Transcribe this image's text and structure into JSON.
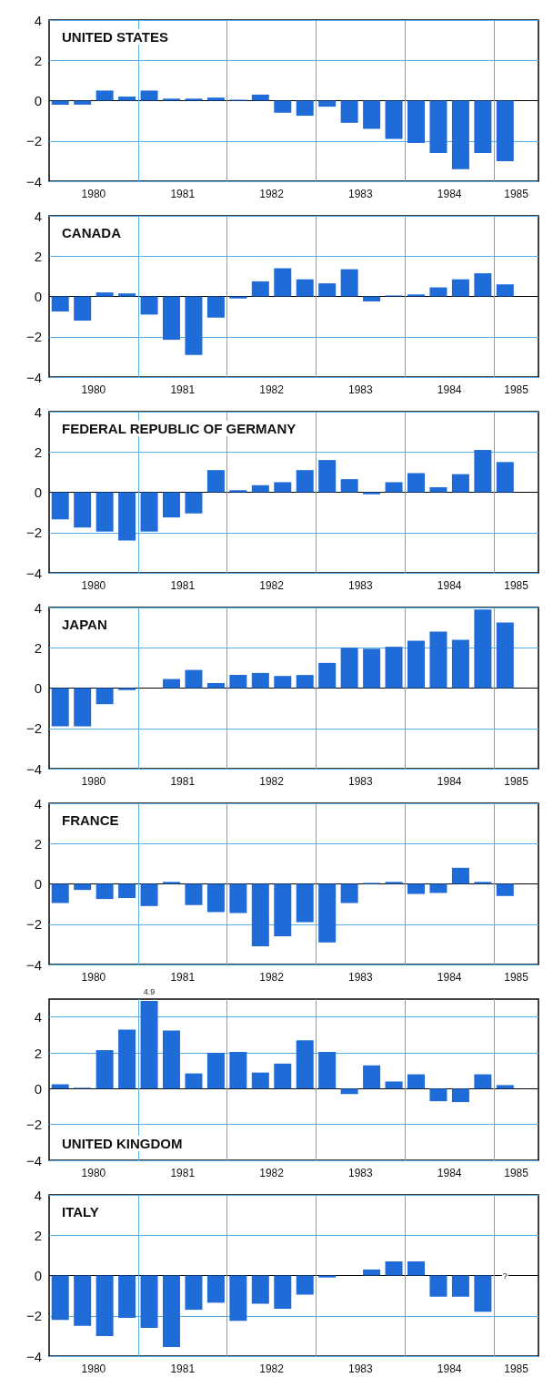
{
  "chart_data": [
    {
      "type": "bar",
      "title": "UNITED STATES",
      "color": "#1f6bd8",
      "grid": true,
      "xlim": [
        1980,
        1985.5
      ],
      "ylim": [
        -4,
        4
      ],
      "yticks": [
        -4,
        -2,
        0,
        2,
        4
      ],
      "xticks": [
        {
          "value": 1981,
          "label": null
        },
        {
          "value": 1982,
          "label": null
        },
        {
          "value": 1983,
          "label": null
        },
        {
          "value": 1984,
          "label": null
        },
        {
          "value": 1985,
          "label": null
        },
        {
          "value": 1980.5,
          "label": "1980"
        },
        {
          "value": 1981.5,
          "label": "1981"
        },
        {
          "value": 1982.5,
          "label": "1982"
        },
        {
          "value": 1983.5,
          "label": "1983"
        },
        {
          "value": 1984.5,
          "label": "1984"
        },
        {
          "value": 1985.25,
          "label": "1985"
        }
      ],
      "x": [
        1980.125,
        1980.375,
        1980.625,
        1980.875,
        1981.125,
        1981.375,
        1981.625,
        1981.875,
        1982.125,
        1982.375,
        1982.625,
        1982.875,
        1983.125,
        1983.375,
        1983.625,
        1983.875,
        1984.125,
        1984.375,
        1984.625,
        1984.875,
        1985.125
      ],
      "values": [
        -0.2,
        -0.2,
        0.5,
        0.2,
        0.5,
        0.1,
        0.1,
        0.15,
        0.05,
        0.3,
        -0.6,
        -0.75,
        -0.3,
        -1.1,
        -1.4,
        -1.9,
        -2.1,
        -2.6,
        -3.4,
        -2.6,
        -3.0
      ]
    },
    {
      "type": "bar",
      "title": "CANADA",
      "color": "#1f6bd8",
      "grid": true,
      "xlim": [
        1980,
        1985.5
      ],
      "ylim": [
        -4,
        4
      ],
      "yticks": [
        -4,
        -2,
        0,
        2,
        4
      ],
      "xticks": [
        {
          "value": 1981,
          "label": null
        },
        {
          "value": 1982,
          "label": null
        },
        {
          "value": 1983,
          "label": null
        },
        {
          "value": 1984,
          "label": null
        },
        {
          "value": 1985,
          "label": null
        },
        {
          "value": 1980.5,
          "label": "1980"
        },
        {
          "value": 1981.5,
          "label": "1981"
        },
        {
          "value": 1982.5,
          "label": "1982"
        },
        {
          "value": 1983.5,
          "label": "1983"
        },
        {
          "value": 1984.5,
          "label": "1984"
        },
        {
          "value": 1985.25,
          "label": "1985"
        }
      ],
      "x": [
        1980.125,
        1980.375,
        1980.625,
        1980.875,
        1981.125,
        1981.375,
        1981.625,
        1981.875,
        1982.125,
        1982.375,
        1982.625,
        1982.875,
        1983.125,
        1983.375,
        1983.625,
        1983.875,
        1984.125,
        1984.375,
        1984.625,
        1984.875,
        1985.125
      ],
      "values": [
        -0.75,
        -1.2,
        0.2,
        0.15,
        -0.9,
        -2.15,
        -2.9,
        -1.05,
        -0.1,
        0.75,
        1.4,
        0.85,
        0.65,
        1.35,
        -0.25,
        0.05,
        0.1,
        0.45,
        0.85,
        1.15,
        0.6
      ]
    },
    {
      "type": "bar",
      "title": "FEDERAL REPUBLIC OF GERMANY",
      "color": "#1f6bd8",
      "grid": true,
      "xlim": [
        1980,
        1985.5
      ],
      "ylim": [
        -4,
        4
      ],
      "yticks": [
        -4,
        -2,
        0,
        2,
        4
      ],
      "xticks": [
        {
          "value": 1981,
          "label": null
        },
        {
          "value": 1982,
          "label": null
        },
        {
          "value": 1983,
          "label": null
        },
        {
          "value": 1984,
          "label": null
        },
        {
          "value": 1985,
          "label": null
        },
        {
          "value": 1980.5,
          "label": "1980"
        },
        {
          "value": 1981.5,
          "label": "1981"
        },
        {
          "value": 1982.5,
          "label": "1982"
        },
        {
          "value": 1983.5,
          "label": "1983"
        },
        {
          "value": 1984.5,
          "label": "1984"
        },
        {
          "value": 1985.25,
          "label": "1985"
        }
      ],
      "x": [
        1980.125,
        1980.375,
        1980.625,
        1980.875,
        1981.125,
        1981.375,
        1981.625,
        1981.875,
        1982.125,
        1982.375,
        1982.625,
        1982.875,
        1983.125,
        1983.375,
        1983.625,
        1983.875,
        1984.125,
        1984.375,
        1984.625,
        1984.875,
        1985.125
      ],
      "values": [
        -1.35,
        -1.75,
        -1.95,
        -2.4,
        -1.95,
        -1.25,
        -1.05,
        1.1,
        0.1,
        0.35,
        0.5,
        1.1,
        1.6,
        0.65,
        -0.1,
        0.5,
        0.95,
        0.25,
        0.9,
        2.1,
        1.5
      ]
    },
    {
      "type": "bar",
      "title": "JAPAN",
      "color": "#1f6bd8",
      "grid": true,
      "xlim": [
        1980,
        1985.5
      ],
      "ylim": [
        -4,
        4
      ],
      "yticks": [
        -4,
        -2,
        0,
        2,
        4
      ],
      "xticks": [
        {
          "value": 1981,
          "label": null
        },
        {
          "value": 1982,
          "label": null
        },
        {
          "value": 1983,
          "label": null
        },
        {
          "value": 1984,
          "label": null
        },
        {
          "value": 1985,
          "label": null
        },
        {
          "value": 1980.5,
          "label": "1980"
        },
        {
          "value": 1981.5,
          "label": "1981"
        },
        {
          "value": 1982.5,
          "label": "1982"
        },
        {
          "value": 1983.5,
          "label": "1983"
        },
        {
          "value": 1984.5,
          "label": "1984"
        },
        {
          "value": 1985.25,
          "label": "1985"
        }
      ],
      "x": [
        1980.125,
        1980.375,
        1980.625,
        1980.875,
        1981.125,
        1981.375,
        1981.625,
        1981.875,
        1982.125,
        1982.375,
        1982.625,
        1982.875,
        1983.125,
        1983.375,
        1983.625,
        1983.875,
        1984.125,
        1984.375,
        1984.625,
        1984.875,
        1985.125
      ],
      "values": [
        -1.9,
        -1.9,
        -0.8,
        -0.1,
        0,
        0.45,
        0.9,
        0.25,
        0.65,
        0.75,
        0.6,
        0.65,
        1.25,
        2.0,
        1.95,
        2.05,
        2.35,
        2.8,
        2.4,
        3.9,
        3.25
      ]
    },
    {
      "type": "bar",
      "title": "FRANCE",
      "color": "#1f6bd8",
      "grid": true,
      "xlim": [
        1980,
        1985.5
      ],
      "ylim": [
        -4,
        4
      ],
      "yticks": [
        -4,
        -2,
        0,
        2,
        4
      ],
      "xticks": [
        {
          "value": 1981,
          "label": null
        },
        {
          "value": 1982,
          "label": null
        },
        {
          "value": 1983,
          "label": null
        },
        {
          "value": 1984,
          "label": null
        },
        {
          "value": 1985,
          "label": null
        },
        {
          "value": 1980.5,
          "label": "1980"
        },
        {
          "value": 1981.5,
          "label": "1981"
        },
        {
          "value": 1982.5,
          "label": "1982"
        },
        {
          "value": 1983.5,
          "label": "1983"
        },
        {
          "value": 1984.5,
          "label": "1984"
        },
        {
          "value": 1985.25,
          "label": "1985"
        }
      ],
      "x": [
        1980.125,
        1980.375,
        1980.625,
        1980.875,
        1981.125,
        1981.375,
        1981.625,
        1981.875,
        1982.125,
        1982.375,
        1982.625,
        1982.875,
        1983.125,
        1983.375,
        1983.625,
        1983.875,
        1984.125,
        1984.375,
        1984.625,
        1984.875,
        1985.125
      ],
      "values": [
        -0.95,
        -0.3,
        -0.75,
        -0.7,
        -1.1,
        0.1,
        -1.05,
        -1.4,
        -1.45,
        -3.1,
        -2.6,
        -1.9,
        -2.9,
        -0.95,
        0.05,
        0.1,
        -0.5,
        -0.45,
        0.8,
        0.1,
        -0.6
      ]
    },
    {
      "type": "bar",
      "title": "UNITED KINGDOM",
      "color": "#1f6bd8",
      "grid": true,
      "xlim": [
        1980,
        1985.5
      ],
      "ylim": [
        -4,
        5
      ],
      "yticks": [
        -4,
        -2,
        0,
        2,
        4
      ],
      "xticks": [
        {
          "value": 1981,
          "label": null
        },
        {
          "value": 1982,
          "label": null
        },
        {
          "value": 1983,
          "label": null
        },
        {
          "value": 1984,
          "label": null
        },
        {
          "value": 1985,
          "label": null
        },
        {
          "value": 1980.5,
          "label": "1980"
        },
        {
          "value": 1981.5,
          "label": "1981"
        },
        {
          "value": 1982.5,
          "label": "1982"
        },
        {
          "value": 1983.5,
          "label": "1983"
        },
        {
          "value": 1984.5,
          "label": "1984"
        },
        {
          "value": 1985.25,
          "label": "1985"
        }
      ],
      "x": [
        1980.125,
        1980.375,
        1980.625,
        1980.875,
        1981.125,
        1981.375,
        1981.625,
        1981.875,
        1982.125,
        1982.375,
        1982.625,
        1982.875,
        1983.125,
        1983.375,
        1983.625,
        1983.875,
        1984.125,
        1984.375,
        1984.625,
        1984.875,
        1985.125
      ],
      "values": [
        0.25,
        0.05,
        2.15,
        3.3,
        4.9,
        3.25,
        0.85,
        2.0,
        2.05,
        0.9,
        1.4,
        2.7,
        2.05,
        -0.3,
        1.3,
        0.4,
        0.8,
        -0.7,
        -0.75,
        0.8,
        0.2
      ],
      "value_labels": [
        null,
        null,
        null,
        null,
        "4.9",
        null,
        null,
        null,
        null,
        null,
        null,
        null,
        null,
        null,
        null,
        null,
        null,
        null,
        null,
        null,
        null
      ]
    },
    {
      "type": "bar",
      "title": "ITALY",
      "color": "#1f6bd8",
      "grid": true,
      "xlim": [
        1980,
        1985.5
      ],
      "ylim": [
        -4,
        4
      ],
      "yticks": [
        -4,
        -2,
        0,
        2,
        4
      ],
      "xticks": [
        {
          "value": 1981,
          "label": null
        },
        {
          "value": 1982,
          "label": null
        },
        {
          "value": 1983,
          "label": null
        },
        {
          "value": 1984,
          "label": null
        },
        {
          "value": 1985,
          "label": null
        },
        {
          "value": 1980.5,
          "label": "1980"
        },
        {
          "value": 1981.5,
          "label": "1981"
        },
        {
          "value": 1982.5,
          "label": "1982"
        },
        {
          "value": 1983.5,
          "label": "1983"
        },
        {
          "value": 1984.5,
          "label": "1984"
        },
        {
          "value": 1985.25,
          "label": "1985"
        }
      ],
      "x": [
        1980.125,
        1980.375,
        1980.625,
        1980.875,
        1981.125,
        1981.375,
        1981.625,
        1981.875,
        1982.125,
        1982.375,
        1982.625,
        1982.875,
        1983.125,
        1983.375,
        1983.625,
        1983.875,
        1984.125,
        1984.375,
        1984.625,
        1984.875
      ],
      "values": [
        -2.2,
        -2.5,
        -3.0,
        -2.1,
        -2.6,
        -3.55,
        -1.7,
        -1.35,
        -2.25,
        -1.4,
        -1.65,
        -0.95,
        -0.1,
        0,
        0.3,
        0.7,
        0.7,
        -1.05,
        -1.05,
        -1.8
      ],
      "annotations": [
        {
          "text": "?",
          "x": 1985.125,
          "y": 0
        }
      ]
    }
  ]
}
